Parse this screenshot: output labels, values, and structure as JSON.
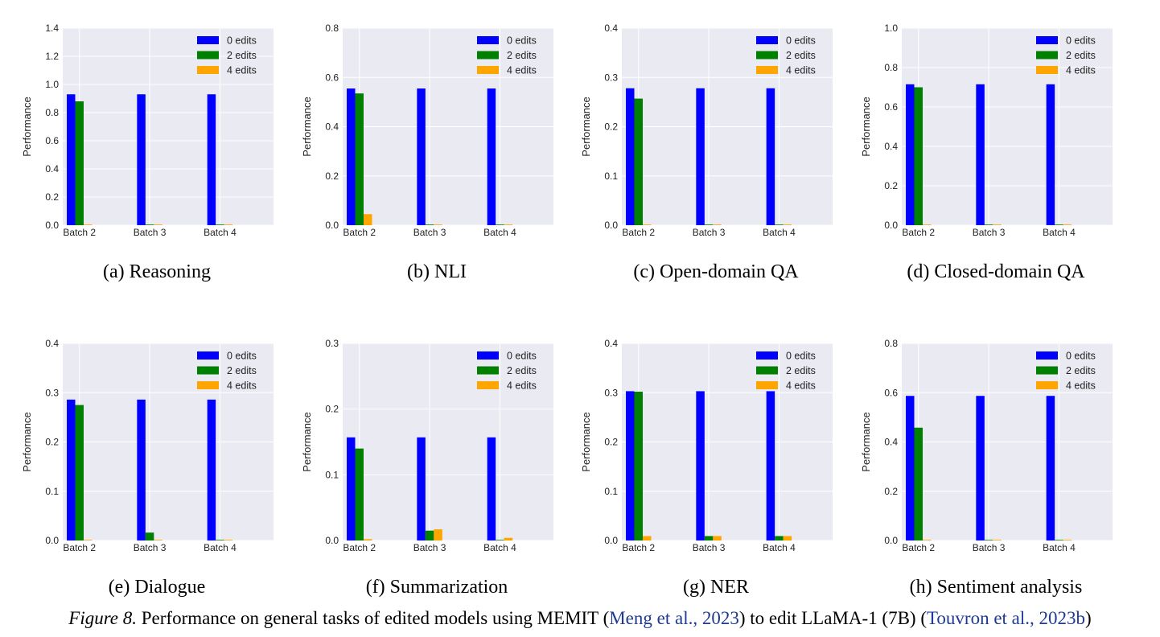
{
  "figure": {
    "caption": {
      "label": "Figure 8.",
      "text_a": "Performance on general tasks of edited models using MEMIT (",
      "cite_a": "Meng et al., 2023",
      "text_b": ") to edit LLaMA-1 (7B) (",
      "cite_b": "Touvron et al., 2023b",
      "text_c": ")"
    },
    "colors": {
      "0 edits": "#0000ff",
      "2 edits": "#008000",
      "4 edits": "#ffa500",
      "plot_bg": "#eaeaf2",
      "grid": "#ffffff"
    }
  },
  "chart_data": [
    {
      "type": "bar",
      "subcaption": "(a)  Reasoning",
      "categories": [
        "Batch 2",
        "Batch 3",
        "Batch 4"
      ],
      "ylabel": "Performance",
      "ylim": [
        0,
        1.4
      ],
      "yticks": [
        "0.0",
        "0.2",
        "0.4",
        "0.6",
        "0.8",
        "1.0",
        "1.2",
        "1.4"
      ],
      "legend": "top-right",
      "grid": true,
      "series": [
        {
          "name": "0 edits",
          "values": [
            0.93,
            0.93,
            0.93
          ]
        },
        {
          "name": "2 edits",
          "values": [
            0.88,
            0.0,
            0.0
          ]
        },
        {
          "name": "4 edits",
          "values": [
            0.0,
            0.0,
            0.0
          ]
        }
      ]
    },
    {
      "type": "bar",
      "subcaption": "(b)  NLI",
      "categories": [
        "Batch 2",
        "Batch 3",
        "Batch 4"
      ],
      "ylabel": "Performance",
      "ylim": [
        0,
        0.8
      ],
      "yticks": [
        "0.0",
        "0.2",
        "0.4",
        "0.6",
        "0.8"
      ],
      "legend": "top-right",
      "grid": true,
      "series": [
        {
          "name": "0 edits",
          "values": [
            0.555,
            0.555,
            0.555
          ]
        },
        {
          "name": "2 edits",
          "values": [
            0.535,
            0.0,
            0.0
          ]
        },
        {
          "name": "4 edits",
          "values": [
            0.045,
            0.0,
            0.0
          ]
        }
      ]
    },
    {
      "type": "bar",
      "subcaption": "(c)  Open-domain QA",
      "categories": [
        "Batch 2",
        "Batch 3",
        "Batch 4"
      ],
      "ylabel": "Performance",
      "ylim": [
        0,
        0.4
      ],
      "yticks": [
        "0.0",
        "0.1",
        "0.2",
        "0.3",
        "0.4"
      ],
      "legend": "top-right",
      "grid": true,
      "series": [
        {
          "name": "0 edits",
          "values": [
            0.278,
            0.278,
            0.278
          ]
        },
        {
          "name": "2 edits",
          "values": [
            0.257,
            0.0,
            0.0
          ]
        },
        {
          "name": "4 edits",
          "values": [
            0.0,
            0.0,
            0.0
          ]
        }
      ]
    },
    {
      "type": "bar",
      "subcaption": "(d)  Closed-domain QA",
      "categories": [
        "Batch 2",
        "Batch 3",
        "Batch 4"
      ],
      "ylabel": "Performance",
      "ylim": [
        0,
        1.0
      ],
      "yticks": [
        "0.0",
        "0.2",
        "0.4",
        "0.6",
        "0.8",
        "1.0"
      ],
      "legend": "top-right",
      "grid": true,
      "series": [
        {
          "name": "0 edits",
          "values": [
            0.715,
            0.715,
            0.715
          ]
        },
        {
          "name": "2 edits",
          "values": [
            0.7,
            0.0,
            0.0
          ]
        },
        {
          "name": "4 edits",
          "values": [
            0.0,
            0.0,
            0.0
          ]
        }
      ]
    },
    {
      "type": "bar",
      "subcaption": "(e)  Dialogue",
      "categories": [
        "Batch 2",
        "Batch 3",
        "Batch 4"
      ],
      "ylabel": "Performance",
      "ylim": [
        0,
        0.4
      ],
      "yticks": [
        "0.0",
        "0.1",
        "0.2",
        "0.3",
        "0.4"
      ],
      "legend": "top-right",
      "grid": true,
      "series": [
        {
          "name": "0 edits",
          "values": [
            0.286,
            0.286,
            0.286
          ]
        },
        {
          "name": "2 edits",
          "values": [
            0.275,
            0.016,
            0.0
          ]
        },
        {
          "name": "4 edits",
          "values": [
            0.0,
            0.0,
            0.0
          ]
        }
      ]
    },
    {
      "type": "bar",
      "subcaption": "(f)  Summarization",
      "categories": [
        "Batch 2",
        "Batch 3",
        "Batch 4"
      ],
      "ylabel": "Performance",
      "ylim": [
        0,
        0.3
      ],
      "yticks": [
        "0.0",
        "0.1",
        "0.2",
        "0.3"
      ],
      "legend": "top-right",
      "grid": true,
      "series": [
        {
          "name": "0 edits",
          "values": [
            0.157,
            0.157,
            0.157
          ]
        },
        {
          "name": "2 edits",
          "values": [
            0.14,
            0.015,
            0.0
          ]
        },
        {
          "name": "4 edits",
          "values": [
            0.002,
            0.017,
            0.004
          ]
        }
      ]
    },
    {
      "type": "bar",
      "subcaption": "(g)  NER",
      "categories": [
        "Batch 2",
        "Batch 3",
        "Batch 4"
      ],
      "ylabel": "Performance",
      "ylim": [
        0,
        0.4
      ],
      "yticks": [
        "0.0",
        "0.1",
        "0.2",
        "0.3",
        "0.4"
      ],
      "legend": "top-right",
      "grid": true,
      "series": [
        {
          "name": "0 edits",
          "values": [
            0.303,
            0.303,
            0.303
          ]
        },
        {
          "name": "2 edits",
          "values": [
            0.302,
            0.009,
            0.009
          ]
        },
        {
          "name": "4 edits",
          "values": [
            0.009,
            0.009,
            0.009
          ]
        }
      ]
    },
    {
      "type": "bar",
      "subcaption": "(h)  Sentiment analysis",
      "categories": [
        "Batch 2",
        "Batch 3",
        "Batch 4"
      ],
      "ylabel": "Performance",
      "ylim": [
        0,
        0.8
      ],
      "yticks": [
        "0.0",
        "0.2",
        "0.4",
        "0.6",
        "0.8"
      ],
      "legend": "top-right",
      "grid": true,
      "series": [
        {
          "name": "0 edits",
          "values": [
            0.587,
            0.587,
            0.587
          ]
        },
        {
          "name": "2 edits",
          "values": [
            0.458,
            0.0,
            0.0
          ]
        },
        {
          "name": "4 edits",
          "values": [
            0.0,
            0.0,
            0.0
          ]
        }
      ]
    }
  ]
}
